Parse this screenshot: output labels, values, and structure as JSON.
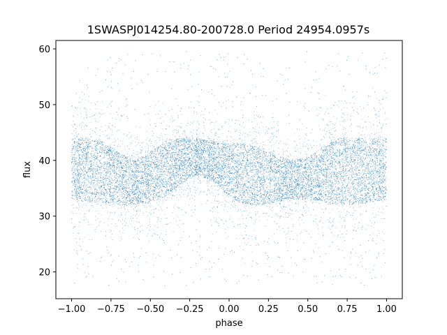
{
  "chart_data": {
    "type": "scatter",
    "title": "1SWASPJ014254.80-200728.0 Period 24954.0957s",
    "xlabel": "phase",
    "ylabel": "flux",
    "xlim": [
      -1.1,
      1.1
    ],
    "ylim": [
      15.2,
      61.5
    ],
    "x_ticks": [
      -1.0,
      -0.75,
      -0.5,
      -0.25,
      0.0,
      0.25,
      0.5,
      0.75,
      1.0
    ],
    "x_tick_labels": [
      "−1.00",
      "−0.75",
      "−0.50",
      "−0.25",
      "0.00",
      "0.25",
      "0.50",
      "0.75",
      "1.00"
    ],
    "y_ticks": [
      20,
      30,
      40,
      50,
      60
    ],
    "y_tick_labels": [
      "20",
      "30",
      "40",
      "50",
      "60"
    ],
    "grid": false,
    "color": "#1f77b4",
    "series": [
      {
        "phase": [
          -1.0,
          -0.9,
          -0.8,
          -0.7,
          -0.6,
          -0.5,
          -0.4,
          -0.3,
          -0.2,
          -0.1,
          0.0,
          0.1,
          0.2,
          0.3,
          0.4,
          0.5,
          0.6,
          0.7,
          0.8,
          0.9,
          1.0
        ],
        "flux_band_low": [
          33.0,
          32.5,
          32.5,
          32.0,
          32.0,
          32.5,
          33.5,
          36.0,
          37.5,
          36.0,
          33.5,
          32.0,
          32.0,
          32.5,
          33.0,
          33.0,
          32.5,
          32.0,
          32.0,
          32.5,
          33.0
        ],
        "flux_band_high": [
          44.0,
          44.0,
          43.5,
          41.5,
          40.0,
          41.5,
          43.5,
          44.0,
          44.0,
          43.5,
          43.0,
          43.0,
          42.5,
          41.0,
          40.0,
          40.5,
          42.5,
          44.0,
          44.0,
          44.0,
          44.0
        ],
        "flux_outlier_range": [
          17.5,
          59.5
        ]
      }
    ]
  }
}
